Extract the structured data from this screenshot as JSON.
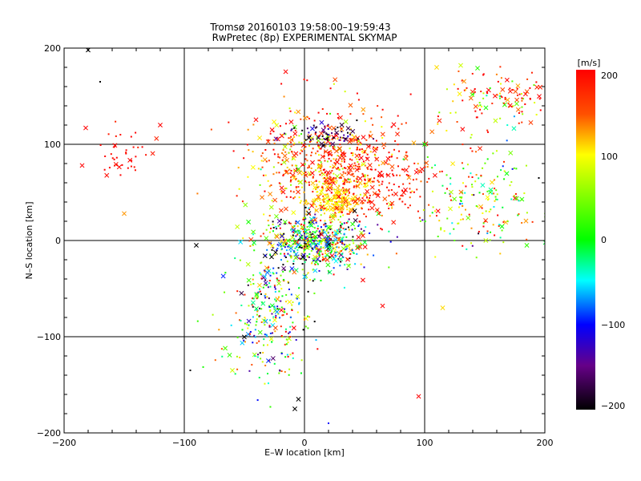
{
  "chart_data": {
    "type": "scatter",
    "title": "Tromsø 20160103 19:58:00–19:59:43",
    "subtitle": "RwPretec (8p) EXPERIMENTAL SKYMAP",
    "xlabel": "E–W location [km]",
    "ylabel": "N–S location [km]",
    "xlim": [
      -200,
      200
    ],
    "ylim": [
      -200,
      200
    ],
    "xticks": [
      "−200",
      "−100",
      "0",
      "100",
      "200"
    ],
    "yticks": [
      "−200",
      "−100",
      "0",
      "100",
      "200"
    ],
    "grid": "major lines at ±100 and 0",
    "colorbar": {
      "label": "[m/s]",
      "range": [
        -200,
        200
      ],
      "ticks": [
        "200",
        "100",
        "0",
        "−100",
        "−200"
      ],
      "colormap": "rainbow: black-purple-blue-cyan-green-yellow-orange-red"
    },
    "markers": {
      "dots": "small dot",
      "crosses": "x"
    },
    "clusters": [
      {
        "x": 15,
        "y": 80,
        "sx": 30,
        "sy": 30,
        "n": 520,
        "vmean": 150,
        "vsd": 55
      },
      {
        "x": 25,
        "y": 42,
        "sx": 12,
        "sy": 8,
        "n": 170,
        "vmean": 110,
        "vsd": 12
      },
      {
        "x": 10,
        "y": -2,
        "sx": 22,
        "sy": 16,
        "n": 520,
        "vmean": 0,
        "vsd": 130
      },
      {
        "x": -25,
        "y": -65,
        "sx": 18,
        "sy": 35,
        "n": 240,
        "vmean": 20,
        "vsd": 120
      },
      {
        "x": 20,
        "y": 110,
        "sx": 15,
        "sy": 6,
        "n": 70,
        "vmean": -170,
        "vsd": 25
      },
      {
        "x": 55,
        "y": 65,
        "sx": 25,
        "sy": 25,
        "n": 240,
        "vmean": 185,
        "vsd": 20
      },
      {
        "x": 150,
        "y": 40,
        "sx": 30,
        "sy": 30,
        "n": 200,
        "vmean": 60,
        "vsd": 90
      },
      {
        "x": 160,
        "y": 145,
        "sx": 25,
        "sy": 18,
        "n": 130,
        "vmean": 140,
        "vsd": 90
      },
      {
        "x": -150,
        "y": 88,
        "sx": 12,
        "sy": 12,
        "n": 40,
        "vmean": 195,
        "vsd": 10
      },
      {
        "x": -40,
        "y": -110,
        "sx": 20,
        "sy": 25,
        "n": 60,
        "vmean": 20,
        "vsd": 110
      }
    ],
    "notable_points": [
      {
        "x": -182,
        "y": 117,
        "v": 200,
        "m": "x"
      },
      {
        "x": -185,
        "y": 78,
        "v": 200,
        "m": "x"
      },
      {
        "x": -150,
        "y": 28,
        "v": 130,
        "m": "x"
      },
      {
        "x": -90,
        "y": -5,
        "v": -200,
        "m": "x"
      },
      {
        "x": -95,
        "y": -135,
        "v": -200,
        "m": "."
      },
      {
        "x": 95,
        "y": -162,
        "v": 200,
        "m": "x"
      },
      {
        "x": -60,
        "y": -135,
        "v": 80,
        "m": "x"
      },
      {
        "x": -5,
        "y": -165,
        "v": -200,
        "m": "x"
      },
      {
        "x": -8,
        "y": -175,
        "v": -200,
        "m": "x"
      },
      {
        "x": 115,
        "y": -70,
        "v": 110,
        "m": "x"
      },
      {
        "x": 110,
        "y": 180,
        "v": 110,
        "m": "x"
      },
      {
        "x": 130,
        "y": 182,
        "v": 80,
        "m": "x"
      },
      {
        "x": 185,
        "y": -5,
        "v": 20,
        "m": "x"
      },
      {
        "x": 195,
        "y": 65,
        "v": -200,
        "m": "."
      },
      {
        "x": 100,
        "y": 100,
        "v": 0,
        "m": "x"
      },
      {
        "x": 65,
        "y": -68,
        "v": 200,
        "m": "x"
      },
      {
        "x": -170,
        "y": 165,
        "v": -200,
        "m": "."
      },
      {
        "x": -120,
        "y": 120,
        "v": 200,
        "m": "x"
      },
      {
        "x": -180,
        "y": 198,
        "v": -200,
        "m": "x"
      },
      {
        "x": 20,
        "y": -190,
        "v": -100,
        "m": "."
      }
    ]
  }
}
